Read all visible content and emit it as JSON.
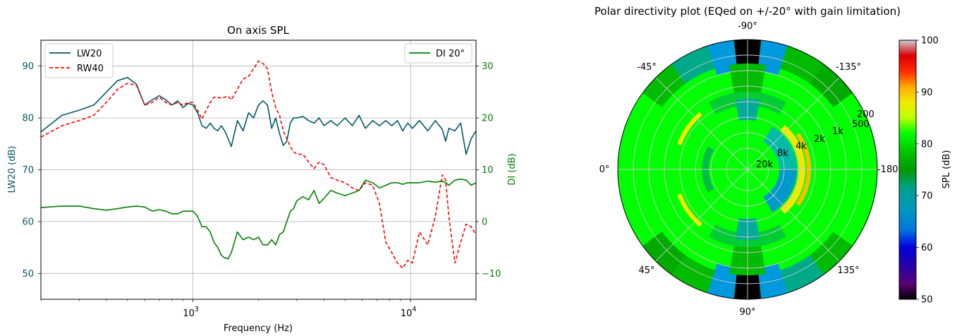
{
  "chart_data": [
    {
      "type": "line",
      "title": "On axis SPL",
      "xlabel": "Frequency (Hz)",
      "ylabel": "LW20 (dB)",
      "y2label": "DI (dB)",
      "xscale": "log",
      "xlim": [
        200,
        20000
      ],
      "ylim": [
        45,
        95
      ],
      "y2lim": [
        -15,
        35
      ],
      "grid": true,
      "x_ticks": [
        {
          "value": 1000,
          "base": "10",
          "exp": "3"
        },
        {
          "value": 10000,
          "base": "10",
          "exp": "4"
        }
      ],
      "y_ticks": [
        50,
        60,
        70,
        80,
        90
      ],
      "y2_ticks": [
        -10,
        0,
        10,
        20,
        30
      ],
      "legend_left_placement": "top-left",
      "legend_right_placement": "top-right",
      "colors": {
        "lw20": "#005a64",
        "rw40": "#ff0000",
        "di": "#008000",
        "grid": "#b0b0b0"
      },
      "series": [
        {
          "name": "LW20",
          "axis": "left",
          "style": "solid",
          "color": "#005a64",
          "x": [
            200,
            250,
            300,
            350,
            400,
            450,
            500,
            550,
            600,
            650,
            700,
            750,
            800,
            850,
            900,
            950,
            1000,
            1050,
            1100,
            1150,
            1200,
            1250,
            1300,
            1350,
            1400,
            1450,
            1500,
            1600,
            1700,
            1800,
            1900,
            2000,
            2100,
            2200,
            2300,
            2400,
            2500,
            2600,
            2700,
            2800,
            2900,
            3000,
            3200,
            3400,
            3600,
            3800,
            4000,
            4300,
            4600,
            5000,
            5400,
            5800,
            6200,
            6700,
            7200,
            7700,
            8200,
            8700,
            9200,
            9700,
            10200,
            11000,
            12000,
            13000,
            14000,
            14500,
            15000,
            16000,
            17000,
            18000,
            19000,
            20000
          ],
          "y": [
            77.3,
            80.5,
            81.5,
            82.5,
            85,
            87.2,
            87.8,
            86.5,
            82.5,
            83.5,
            84.3,
            83.5,
            82.5,
            83.3,
            82,
            82.8,
            82.5,
            81,
            78.5,
            78,
            79,
            78,
            77.5,
            78.5,
            77.5,
            76,
            74.5,
            79.5,
            77.5,
            81,
            80,
            82.5,
            83.3,
            82.5,
            78,
            80,
            77,
            74.7,
            75.5,
            79,
            80,
            80,
            80.3,
            79.5,
            79,
            80,
            78.5,
            79.5,
            78.5,
            80,
            78.5,
            80.5,
            78,
            79.5,
            78.5,
            79.5,
            78.5,
            79.5,
            77.5,
            79,
            78,
            79.5,
            77.5,
            79.5,
            77.8,
            75.5,
            78,
            77.5,
            79,
            73,
            76,
            77.5
          ]
        },
        {
          "name": "RW40",
          "axis": "left",
          "style": "dashed",
          "color": "#ff0000",
          "x": [
            200,
            250,
            300,
            350,
            400,
            450,
            500,
            550,
            600,
            650,
            700,
            750,
            800,
            850,
            900,
            950,
            1000,
            1050,
            1100,
            1150,
            1200,
            1250,
            1300,
            1350,
            1400,
            1450,
            1500,
            1600,
            1700,
            1800,
            1900,
            2000,
            2100,
            2200,
            2300,
            2400,
            2500,
            2600,
            2700,
            2800,
            2900,
            3000,
            3200,
            3400,
            3600,
            3800,
            4000,
            4300,
            4600,
            5000,
            5400,
            5800,
            6200,
            6700,
            7200,
            7700,
            8200,
            8700,
            9200,
            9700,
            10200,
            11000,
            12000,
            13000,
            14000,
            14500,
            15000,
            16000,
            17000,
            18000,
            19000,
            20000
          ],
          "y": [
            76.3,
            78.5,
            79.5,
            80.5,
            83,
            85.5,
            86.7,
            86.3,
            82.5,
            83,
            84,
            83,
            82.5,
            83,
            82.5,
            83,
            83,
            81.5,
            79.8,
            81.5,
            83,
            84,
            84,
            83.8,
            84,
            84.2,
            83.5,
            85.5,
            87.5,
            88,
            89.5,
            91,
            90.5,
            89.5,
            85,
            82,
            80.5,
            77.5,
            76,
            74.5,
            73.5,
            73,
            73,
            71.5,
            70.2,
            71.5,
            71,
            68.5,
            68,
            67.5,
            66.5,
            66,
            67.5,
            67,
            63.5,
            56,
            54,
            52,
            51,
            52.5,
            52,
            58,
            55.5,
            61,
            69,
            68,
            61,
            52,
            56,
            59.5,
            59,
            57.5
          ]
        },
        {
          "name": "DI 20°",
          "axis": "right",
          "style": "solid",
          "color": "#008000",
          "x": [
            200,
            250,
            300,
            350,
            400,
            450,
            500,
            550,
            600,
            650,
            700,
            750,
            800,
            850,
            900,
            950,
            1000,
            1050,
            1100,
            1150,
            1200,
            1250,
            1300,
            1350,
            1400,
            1450,
            1500,
            1600,
            1700,
            1800,
            1900,
            2000,
            2100,
            2200,
            2300,
            2400,
            2500,
            2600,
            2700,
            2800,
            2900,
            3000,
            3200,
            3400,
            3600,
            3800,
            4000,
            4300,
            4600,
            5000,
            5400,
            5800,
            6200,
            6700,
            7200,
            7700,
            8200,
            8700,
            9200,
            9700,
            10200,
            11000,
            12000,
            13000,
            14000,
            14500,
            15000,
            16000,
            17000,
            18000,
            19000,
            20000
          ],
          "y": [
            2.7,
            3,
            3,
            2.5,
            2.2,
            2.5,
            2.8,
            3,
            2.8,
            2,
            2.3,
            2,
            1.5,
            1.5,
            2,
            2,
            2,
            1,
            -1,
            -1,
            -2,
            -4,
            -5,
            -6.5,
            -7,
            -7.2,
            -6,
            -2,
            -3.5,
            -3,
            -3.5,
            -3,
            -4.5,
            -4.5,
            -3.5,
            -4.5,
            -2.5,
            -2,
            0,
            2,
            2.5,
            4,
            4.8,
            4.2,
            6,
            3.5,
            4.5,
            6,
            5.5,
            5,
            5.5,
            6,
            8,
            7.5,
            6.5,
            7,
            7.5,
            7.5,
            7.2,
            7.5,
            7.5,
            7.5,
            7.8,
            7.6,
            7.8,
            7.5,
            7,
            8,
            8.2,
            8,
            7,
            7.5
          ]
        }
      ]
    },
    {
      "type": "heatmap",
      "projection": "polar",
      "title": "Polar directivity plot (EQed on +/-20° with gain limitation)",
      "angle_labels": [
        "-90°",
        "-135°",
        "-180°",
        "135°",
        "90°",
        "45°",
        "0°",
        "-45°"
      ],
      "radial_labels": [
        "200",
        "500",
        "1k",
        "2k",
        "4k",
        "8k",
        "20k"
      ],
      "colorbar_label": "SPL (dB)",
      "colorbar_range": [
        50,
        100
      ],
      "colorbar_ticks": [
        50,
        60,
        70,
        80,
        90,
        100
      ],
      "colormap": "nipy_spectral"
    }
  ]
}
